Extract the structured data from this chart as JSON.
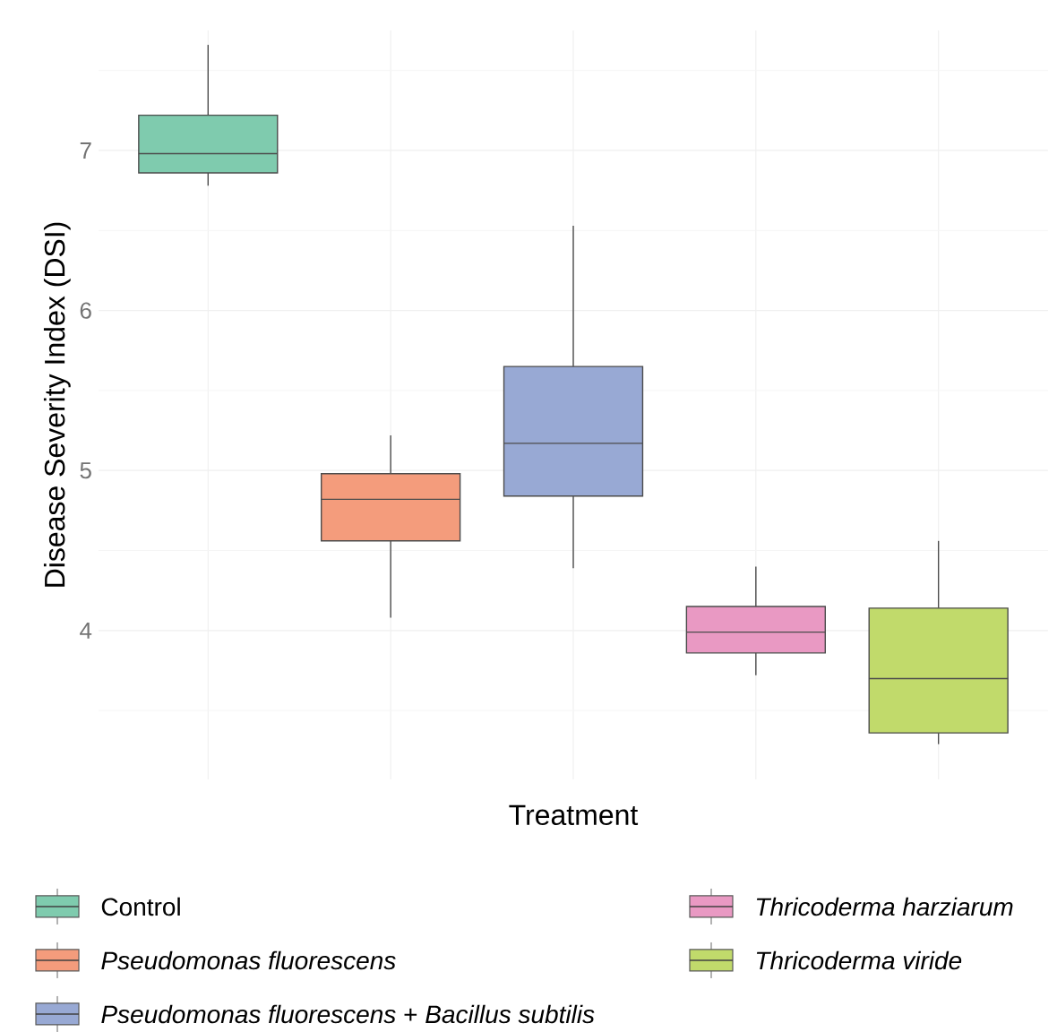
{
  "chart_data": {
    "type": "box",
    "xlabel": "Treatment",
    "ylabel": "Disease Severity Index (DSI)",
    "categories": [
      null,
      null,
      null,
      null,
      null
    ],
    "series": [
      {
        "name": "Control",
        "color": "#7fcbae",
        "boxes": [
          {
            "low": 6.78,
            "q1": 6.86,
            "median": 6.98,
            "q3": 7.22,
            "high": 7.66
          },
          null,
          null,
          null,
          null
        ]
      },
      {
        "name": "*Pseudomonas fluorescens*",
        "color": "#f49c7c",
        "boxes": [
          null,
          {
            "low": 4.08,
            "q1": 4.56,
            "median": 4.82,
            "q3": 4.98,
            "high": 5.22
          },
          null,
          null,
          null
        ]
      },
      {
        "name": "*Pseudomonas fluorescens* + *Bacillus subtilis*",
        "color": "#98a9d4",
        "boxes": [
          null,
          null,
          {
            "low": 4.39,
            "q1": 4.84,
            "median": 5.17,
            "q3": 5.65,
            "high": 6.53
          },
          null,
          null
        ]
      },
      {
        "name": "*Thricoderma harziarum*",
        "color": "#e999c3",
        "boxes": [
          null,
          null,
          null,
          {
            "low": 3.72,
            "q1": 3.86,
            "median": 3.99,
            "q3": 4.15,
            "high": 4.4
          },
          null
        ]
      },
      {
        "name": "*Thricoderma viride*",
        "color": "#c1da6b",
        "boxes": [
          null,
          null,
          null,
          null,
          {
            "low": 3.29,
            "q1": 3.36,
            "median": 3.7,
            "q3": 4.14,
            "high": 4.56
          }
        ]
      }
    ],
    "ylim": [
      3.07,
      7.75
    ],
    "yticks": [
      4,
      5,
      6,
      7
    ],
    "grid": true,
    "legend": "bottom",
    "tick_labels": "y"
  }
}
